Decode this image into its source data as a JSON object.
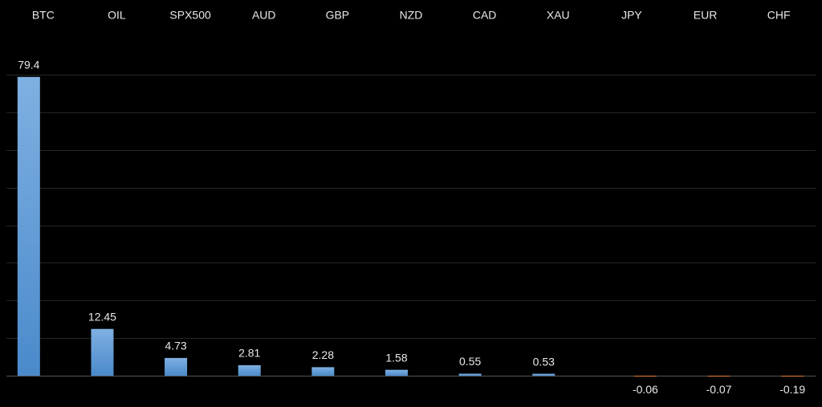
{
  "chart_data": {
    "type": "bar",
    "categories": [
      "BTC",
      "OIL",
      "SPX500",
      "AUD",
      "GBP",
      "NZD",
      "CAD",
      "XAU",
      "JPY",
      "EUR",
      "CHF"
    ],
    "values": [
      79.4,
      12.45,
      4.73,
      2.81,
      2.28,
      1.58,
      0.55,
      0.53,
      -0.06,
      -0.07,
      -0.19
    ],
    "value_labels": [
      "79.4",
      "12.45",
      "4.73",
      "2.81",
      "2.28",
      "1.58",
      "0.55",
      "0.53",
      "-0.06",
      "-0.07",
      "-0.19"
    ],
    "color": "#5b9bd5",
    "negative_color": "#ed7d31",
    "ylim": [
      -8.3,
      80
    ],
    "yticks": [
      0,
      10,
      20,
      30,
      40,
      50,
      60,
      70,
      80
    ],
    "grid": true
  }
}
